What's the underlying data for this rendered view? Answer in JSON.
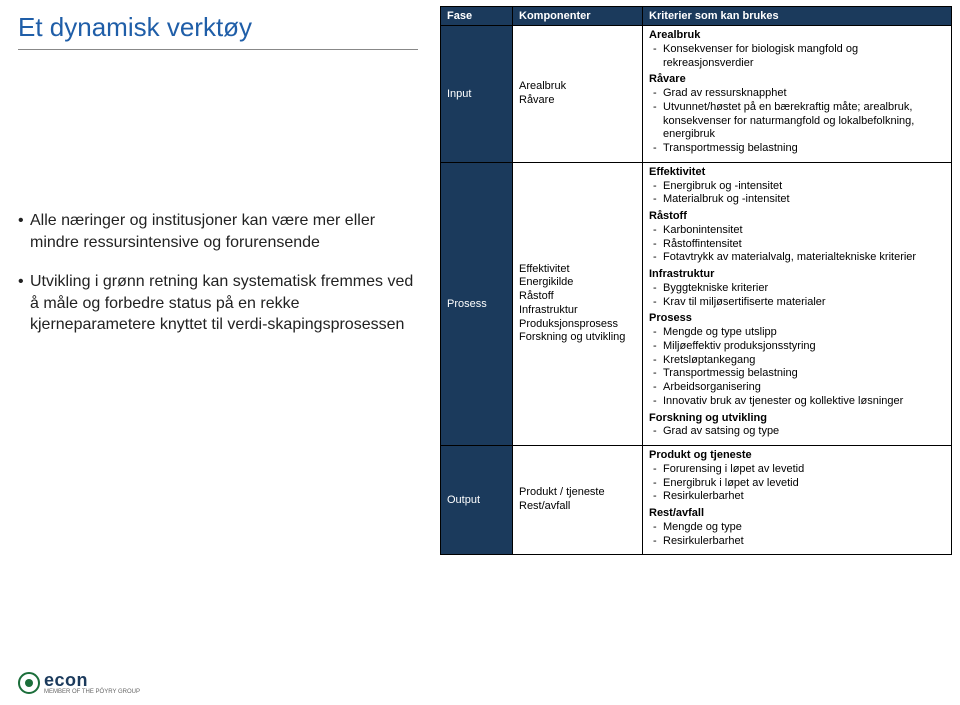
{
  "title": "Et dynamisk verktøy",
  "bullets": [
    "Alle næringer og institusjoner kan være mer eller mindre ressursintensive og forurensende",
    "Utvikling i grønn retning kan systematisk fremmes ved å måle og forbedre status på en rekke kjerneparametere knyttet til verdi-skapingsprosessen"
  ],
  "table": {
    "headers": [
      "Fase",
      "Komponenter",
      "Kriterier som kan brukes"
    ],
    "rows": [
      {
        "phase": "Input",
        "components": [
          "Arealbruk",
          "Råvare"
        ],
        "criteria_html": "<div class='group'><b>Arealbruk</b><div class='item'>Konsekvenser for biologisk mangfold og rekreasjonsverdier</div></div><div class='group'><b>Råvare</b><div class='item'>Grad av ressursknapphet</div><div class='item'>Utvunnet/høstet på en bærekraftig måte; arealbruk, konsekvenser for naturmangfold og lokalbefolkning, energibruk</div><div class='item'>Transportmessig belastning</div></div>"
      },
      {
        "phase": "Prosess",
        "components": [
          "Effektivitet",
          "Energikilde",
          "Råstoff",
          "Infrastruktur",
          "Produksjonsprosess",
          "Forskning og utvikling"
        ],
        "criteria_html": "<div class='group'><b>Effektivitet</b><div class='item'>Energibruk og -intensitet</div><div class='item'>Materialbruk og -intensitet</div></div><div class='group'><b>Råstoff</b><div class='item'>Karbonintensitet</div><div class='item'>Råstoffintensitet</div><div class='item'>Fotavtrykk av materialvalg, materialtekniske kriterier</div></div><div class='group'><b>Infrastruktur</b><div class='item'>Byggtekniske kriterier</div><div class='item'>Krav til miljøsertifiserte materialer</div></div><div class='group'><b>Prosess</b><div class='item'>Mengde og type utslipp</div><div class='item'>Miljøeffektiv produksjonsstyring</div><div class='item'>Kretsløptankegang</div><div class='item'>Transportmessig belastning</div><div class='item'>Arbeidsorganisering</div><div class='item'>Innovativ bruk av tjenester og kollektive løsninger</div></div><div class='group'><b>Forskning og utvikling</b><div class='item'>Grad av satsing og type</div></div>"
      },
      {
        "phase": "Output",
        "components": [
          "Produkt / tjeneste",
          "Rest/avfall"
        ],
        "criteria_html": "<div class='group'><b>Produkt og tjeneste</b><div class='item'>Forurensing i løpet av levetid</div><div class='item'>Energibruk i løpet av levetid</div><div class='item'>Resirkulerbarhet</div></div><div class='group'><b>Rest/avfall</b><div class='item'>Mengde og type</div><div class='item'>Resirkulerbarhet</div></div>"
      }
    ]
  },
  "logo": {
    "text": "econ",
    "sub": "MEMBER OF THE PÖYRY GROUP"
  },
  "colors": {
    "title": "#1f5ea8",
    "header_bg": "#1b3a5c",
    "header_fg": "#ffffff",
    "border": "#000000"
  }
}
